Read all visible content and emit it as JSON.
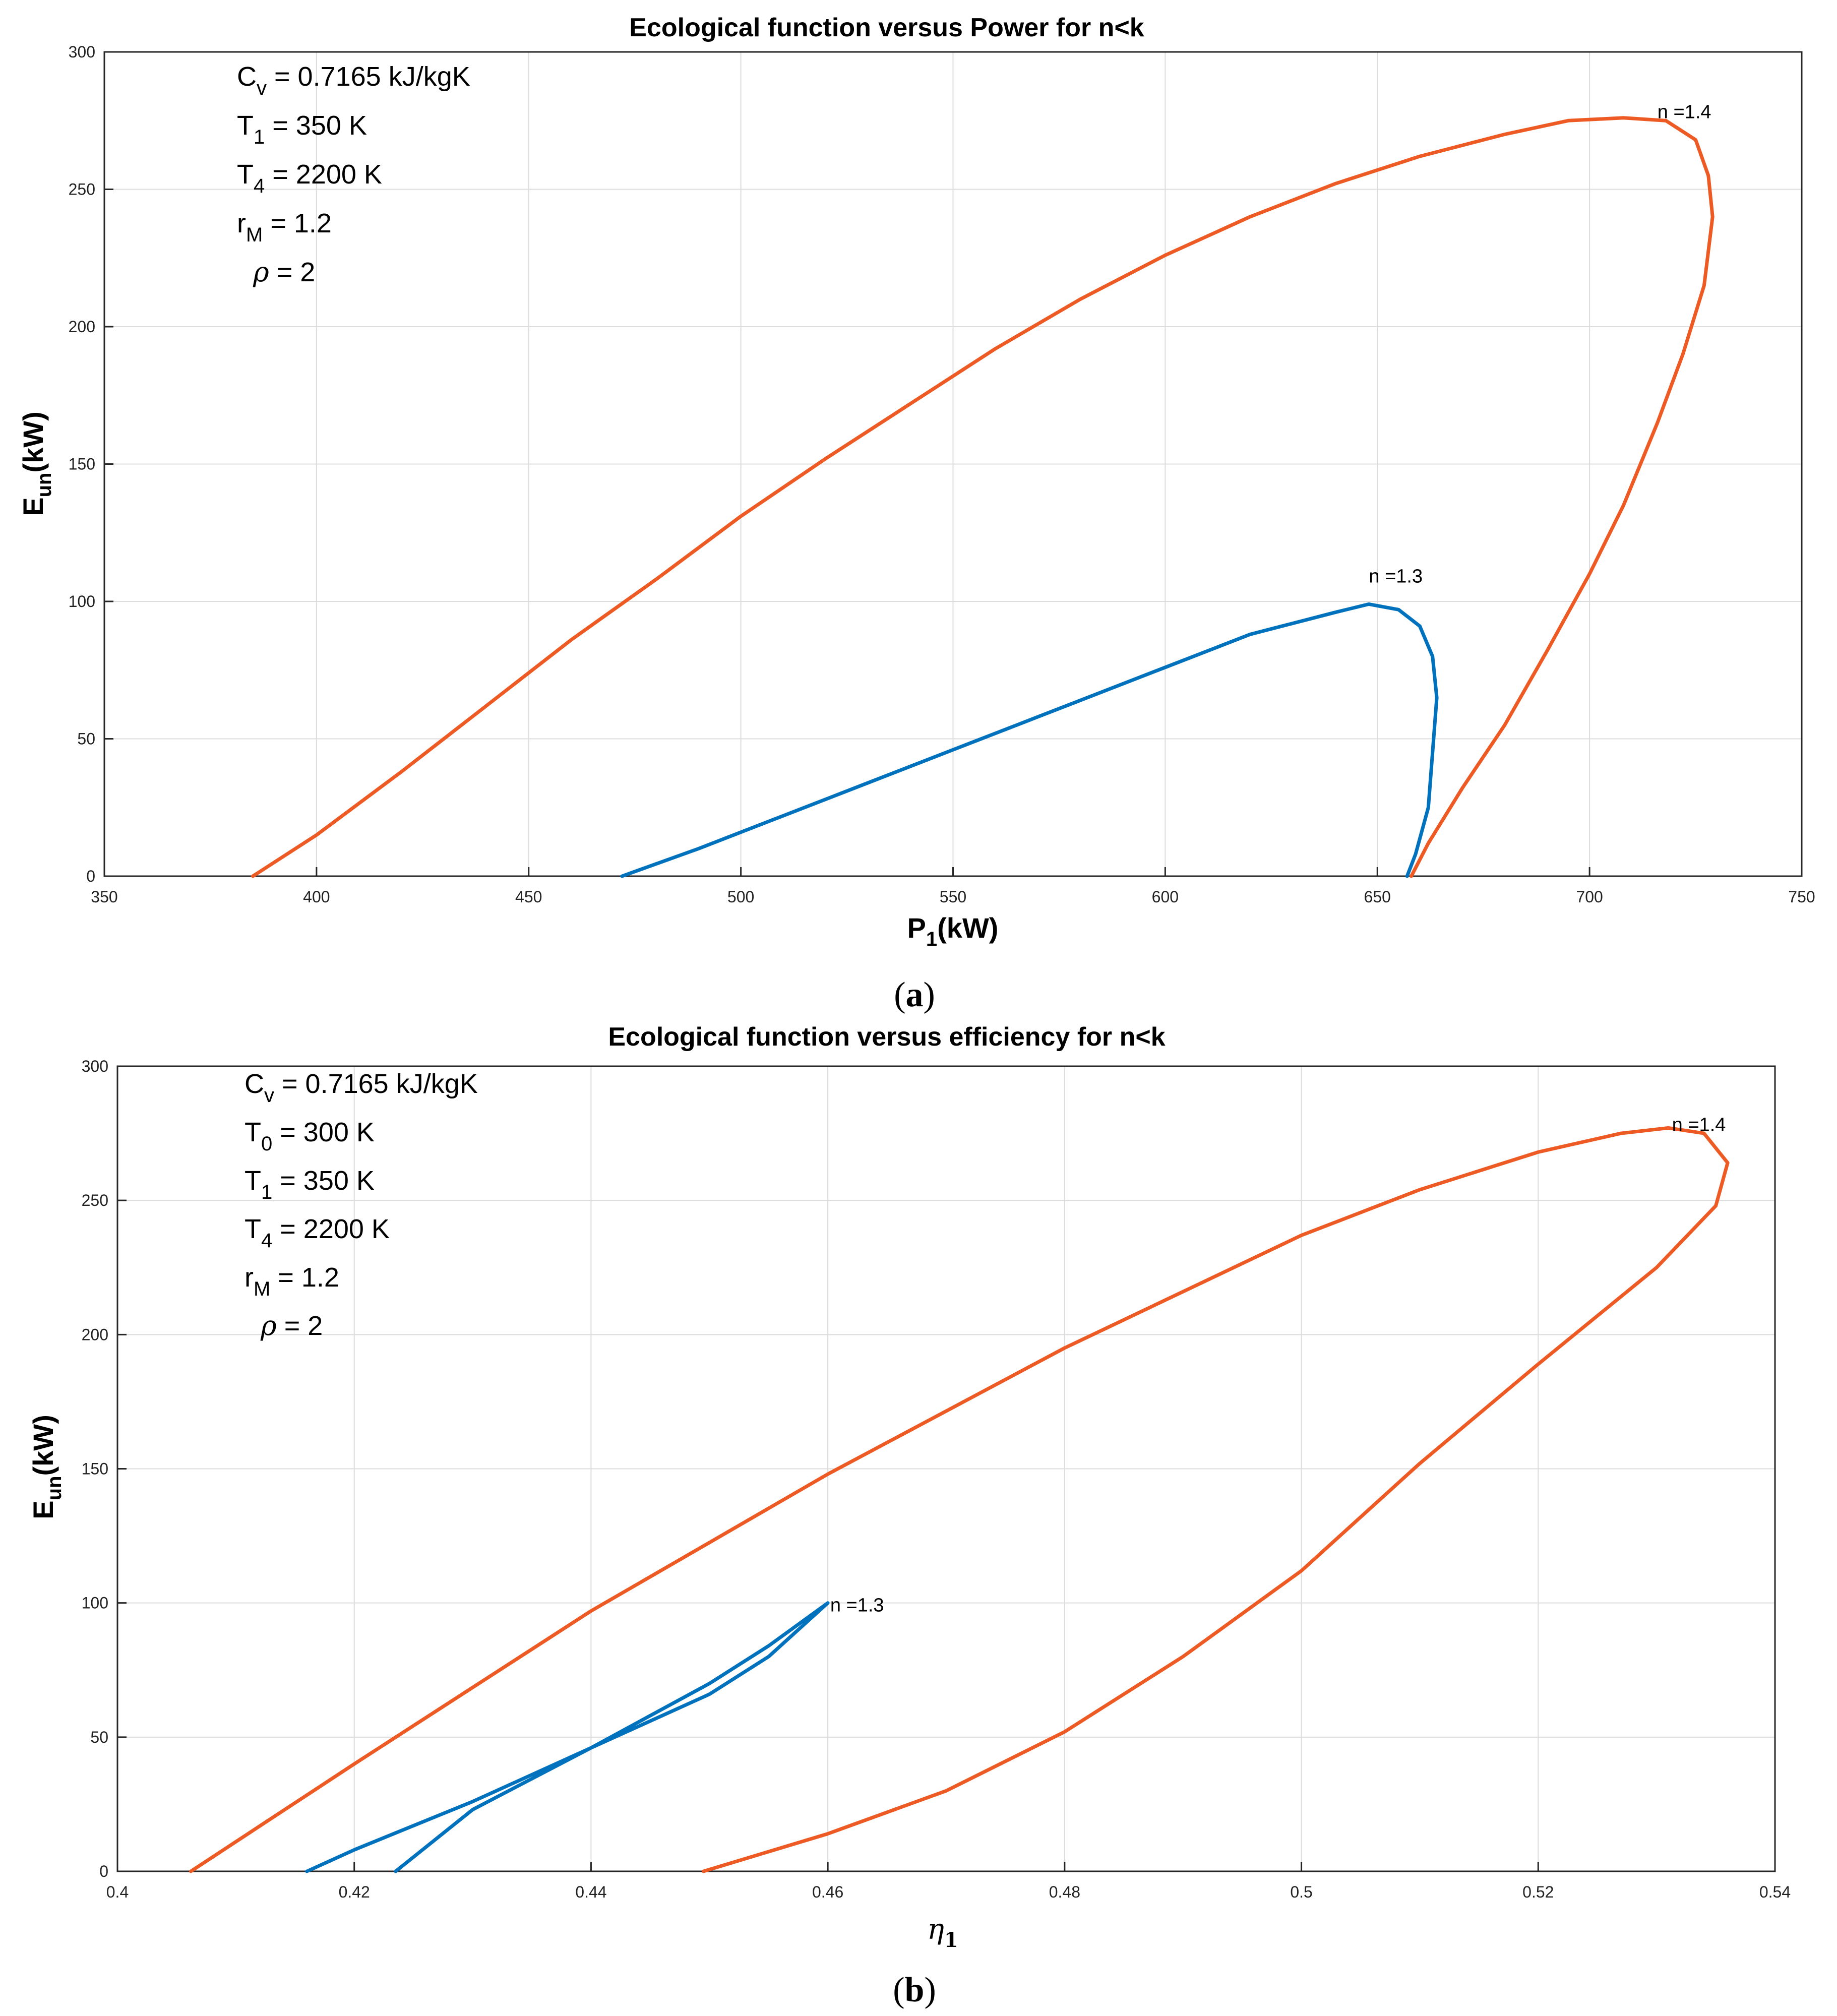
{
  "colors": {
    "series_n13": "#0072BD",
    "series_n14": "#EE5A24"
  },
  "chart_data": [
    {
      "type": "line",
      "panel": "a",
      "caption": "a",
      "title": "Ecological function versus Power for n<k",
      "xlabel": {
        "main": "P",
        "sub": "1",
        "unit": "(kW)"
      },
      "ylabel": {
        "main": "E",
        "sub": "un",
        "unit": "(kW)"
      },
      "xlim": [
        350,
        750
      ],
      "ylim": [
        0,
        300
      ],
      "xticks": [
        350,
        400,
        450,
        500,
        550,
        600,
        650,
        700,
        750
      ],
      "yticks": [
        0,
        50,
        100,
        150,
        200,
        250,
        300
      ],
      "xtick_labels": [
        "350",
        "400",
        "450",
        "500",
        "550",
        "600",
        "650",
        "700",
        "750"
      ],
      "ytick_labels": [
        "0",
        "50",
        "100",
        "150",
        "200",
        "250",
        "300"
      ],
      "params": [
        {
          "main": "C",
          "sub": "v",
          "rest": " = 0.7165 kJ/kgK"
        },
        {
          "main": "T",
          "sub": "1",
          "rest": " = 350 K"
        },
        {
          "main": "T",
          "sub": "4",
          "rest": " = 2200 K"
        },
        {
          "main": "r",
          "sub": "M",
          "rest": " = 1.2"
        },
        {
          "main": "ρ",
          "sub": "",
          "rest": " = 2"
        }
      ],
      "series": [
        {
          "name": "n =1.3",
          "label": "n =1.3",
          "label_at": {
            "x": 648,
            "y": 108
          },
          "points": [
            [
              472,
              0
            ],
            [
              490,
              10
            ],
            [
              510,
              22
            ],
            [
              530,
              34
            ],
            [
              550,
              46
            ],
            [
              570,
              58
            ],
            [
              590,
              70
            ],
            [
              600,
              76
            ],
            [
              610,
              82
            ],
            [
              620,
              88
            ],
            [
              630,
              92
            ],
            [
              640,
              96
            ],
            [
              648,
              99
            ],
            [
              655,
              97
            ],
            [
              660,
              91
            ],
            [
              663,
              80
            ],
            [
              664,
              65
            ],
            [
              663,
              45
            ],
            [
              662,
              25
            ],
            [
              659,
              8
            ],
            [
              657,
              0
            ]
          ]
        },
        {
          "name": "n =1.4",
          "label": "n =1.4",
          "label_at": {
            "x": 716,
            "y": 277
          },
          "points": [
            [
              385,
              0
            ],
            [
              400,
              15
            ],
            [
              420,
              38
            ],
            [
              440,
              62
            ],
            [
              460,
              86
            ],
            [
              480,
              108
            ],
            [
              500,
              131
            ],
            [
              520,
              152
            ],
            [
              540,
              172
            ],
            [
              560,
              192
            ],
            [
              580,
              210
            ],
            [
              600,
              226
            ],
            [
              620,
              240
            ],
            [
              640,
              252
            ],
            [
              660,
              262
            ],
            [
              680,
              270
            ],
            [
              695,
              275
            ],
            [
              708,
              276
            ],
            [
              718,
              275
            ],
            [
              725,
              268
            ],
            [
              728,
              255
            ],
            [
              729,
              240
            ],
            [
              727,
              215
            ],
            [
              722,
              190
            ],
            [
              716,
              165
            ],
            [
              708,
              135
            ],
            [
              700,
              110
            ],
            [
              690,
              82
            ],
            [
              680,
              55
            ],
            [
              670,
              32
            ],
            [
              662,
              12
            ],
            [
              658,
              0
            ]
          ]
        }
      ]
    },
    {
      "type": "line",
      "panel": "b",
      "caption": "b",
      "title": "Ecological function versus efficiency for n<k",
      "xlabel": {
        "main": "η",
        "sub": "1",
        "unit": ""
      },
      "ylabel": {
        "main": "E",
        "sub": "un",
        "unit": "(kW)"
      },
      "xlim": [
        0.4,
        0.54
      ],
      "ylim": [
        0,
        300
      ],
      "xticks": [
        0.4,
        0.42,
        0.44,
        0.46,
        0.48,
        0.5,
        0.52,
        0.54
      ],
      "yticks": [
        0,
        50,
        100,
        150,
        200,
        250,
        300
      ],
      "xtick_labels": [
        "0.4",
        "0.42",
        "0.44",
        "0.46",
        "0.48",
        "0.5",
        "0.52",
        "0.54"
      ],
      "ytick_labels": [
        "0",
        "50",
        "100",
        "150",
        "200",
        "250",
        "300"
      ],
      "params": [
        {
          "main": "C",
          "sub": "v",
          "rest": " = 0.7165 kJ/kgK"
        },
        {
          "main": "T",
          "sub": "0",
          "rest": " = 300 K"
        },
        {
          "main": "T",
          "sub": "1",
          "rest": " = 350 K"
        },
        {
          "main": "T",
          "sub": "4",
          "rest": " = 2200 K"
        },
        {
          "main": "r",
          "sub": "M",
          "rest": " = 1.2"
        },
        {
          "main": "ρ",
          "sub": "",
          "rest": " = 2"
        }
      ],
      "series": [
        {
          "name": "n =1.3",
          "label": "n =1.3",
          "label_at": {
            "x": 0.4602,
            "y": 98
          },
          "points": [
            [
              0.416,
              0
            ],
            [
              0.42,
              8
            ],
            [
              0.43,
              26
            ],
            [
              0.44,
              46
            ],
            [
              0.45,
              70
            ],
            [
              0.455,
              84
            ],
            [
              0.46,
              100
            ],
            [
              0.455,
              80
            ],
            [
              0.45,
              66
            ],
            [
              0.44,
              46
            ],
            [
              0.43,
              23
            ],
            [
              0.4235,
              0
            ]
          ]
        },
        {
          "name": "n =1.4",
          "label": "n =1.4",
          "label_at": {
            "x": 0.5313,
            "y": 277
          },
          "points": [
            [
              0.4062,
              0
            ],
            [
              0.42,
              40
            ],
            [
              0.44,
              97
            ],
            [
              0.46,
              148
            ],
            [
              0.48,
              195
            ],
            [
              0.5,
              237
            ],
            [
              0.51,
              254
            ],
            [
              0.52,
              268
            ],
            [
              0.527,
              275
            ],
            [
              0.531,
              277
            ],
            [
              0.534,
              275
            ],
            [
              0.536,
              264
            ],
            [
              0.535,
              248
            ],
            [
              0.53,
              225
            ],
            [
              0.52,
              189
            ],
            [
              0.51,
              152
            ],
            [
              0.5,
              112
            ],
            [
              0.49,
              80
            ],
            [
              0.48,
              52
            ],
            [
              0.47,
              30
            ],
            [
              0.46,
              14
            ],
            [
              0.4495,
              0
            ]
          ]
        }
      ]
    }
  ]
}
